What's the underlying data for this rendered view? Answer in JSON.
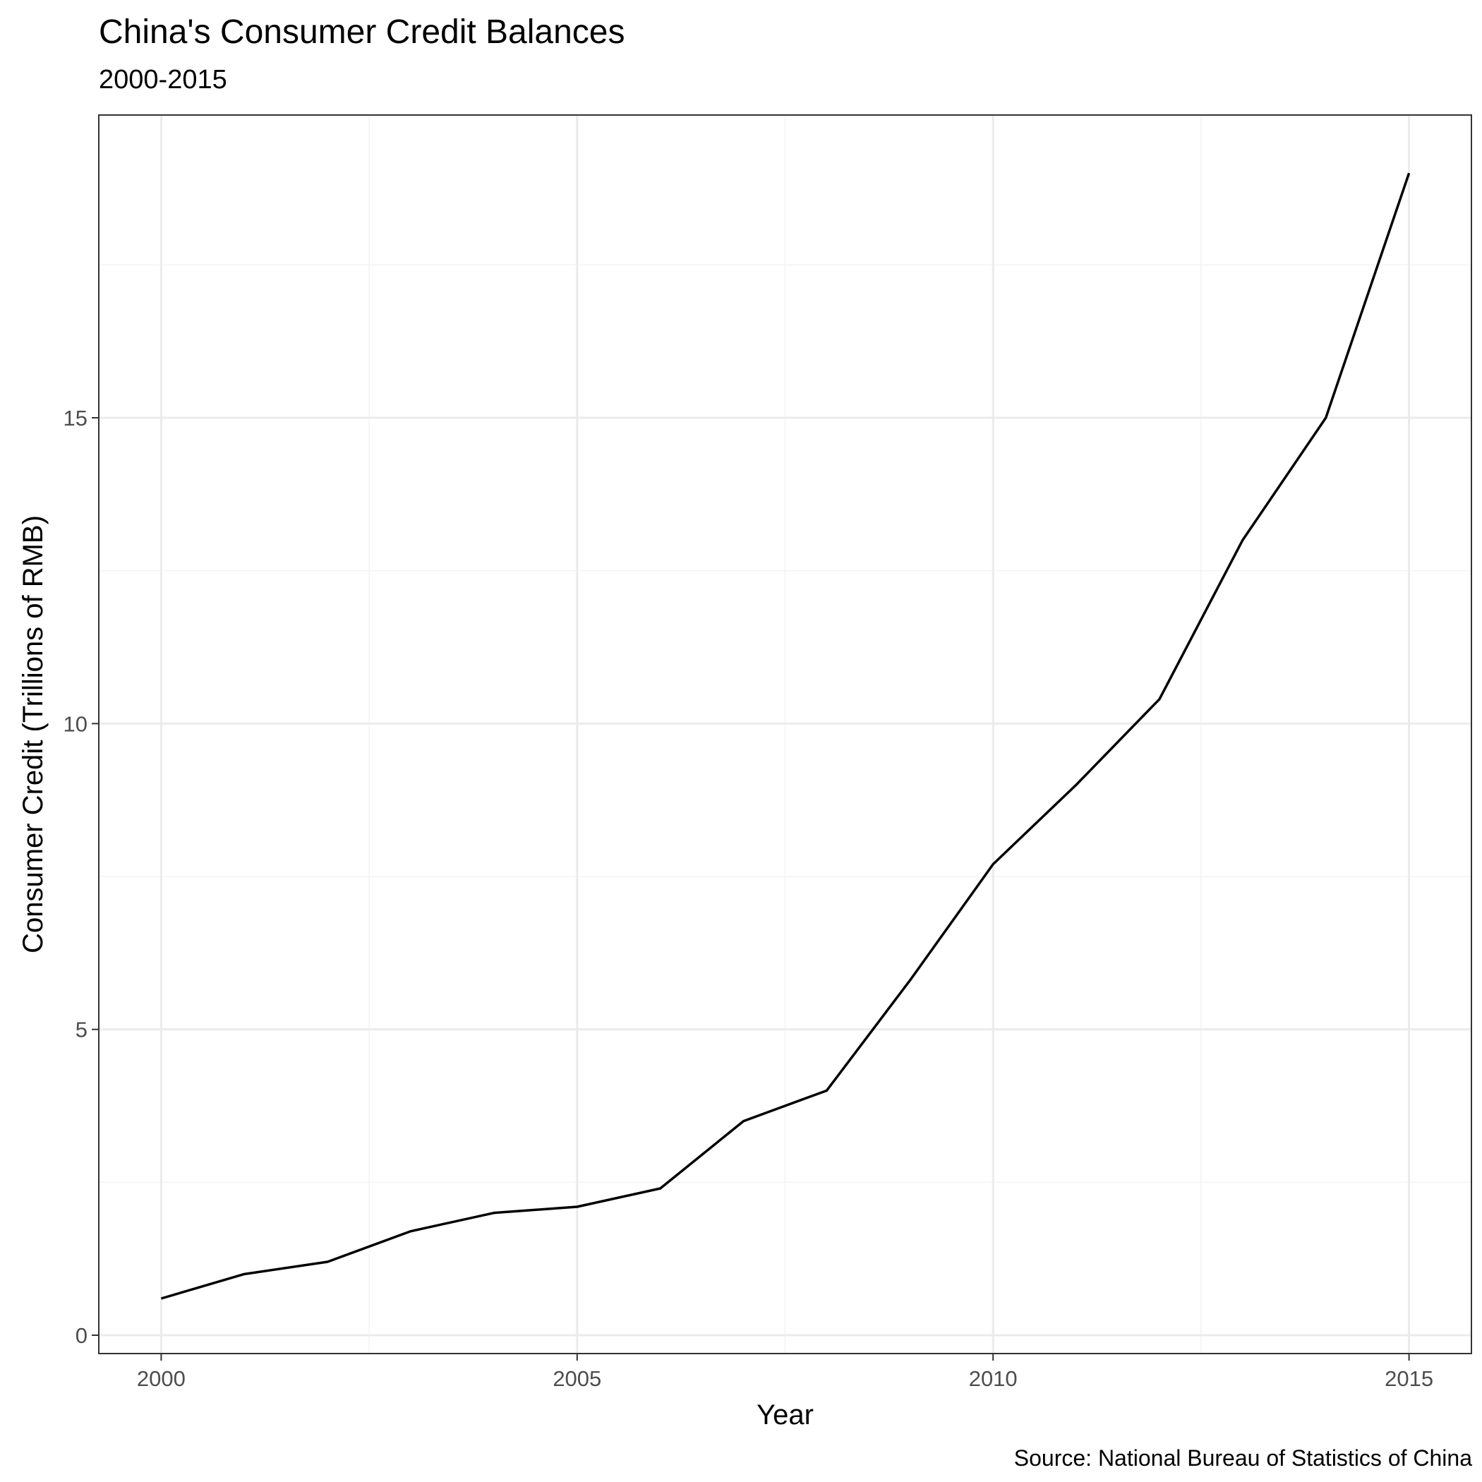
{
  "chart_data": {
    "type": "line",
    "title": "China's Consumer Credit Balances",
    "subtitle": "2000-2015",
    "caption": "Source: National Bureau of Statistics of China",
    "xlabel": "Year",
    "ylabel": "Consumer Credit (Trillions of RMB)",
    "x": [
      2000,
      2001,
      2002,
      2003,
      2004,
      2005,
      2006,
      2007,
      2008,
      2009,
      2010,
      2011,
      2012,
      2013,
      2014,
      2015
    ],
    "series": [
      {
        "values": [
          0.6,
          1.0,
          1.2,
          1.7,
          2.0,
          2.1,
          2.4,
          3.5,
          4.0,
          5.8,
          7.7,
          9.0,
          10.4,
          13.0,
          15.0,
          19.0
        ]
      }
    ],
    "xlim": [
      1999.25,
      2015.75
    ],
    "ylim": [
      -0.3,
      19.95
    ],
    "xticks": [
      2000,
      2005,
      2010,
      2015
    ],
    "yticks": [
      0,
      5,
      10,
      15
    ],
    "grid": true,
    "line_color": "#000000",
    "grid_major_color": "#ebebeb",
    "grid_minor_color": "#f3f3f3",
    "tick_label_color": "#4d4d4d"
  }
}
